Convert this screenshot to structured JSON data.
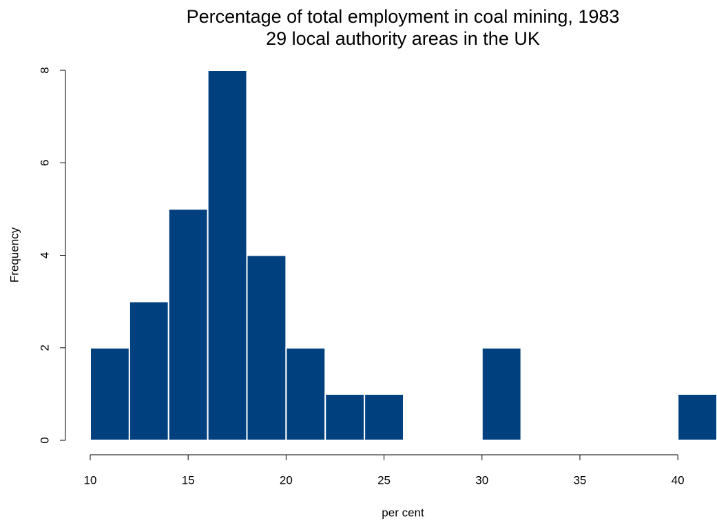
{
  "chart_data": {
    "type": "histogram",
    "title": "Percentage of total employment in coal mining, 1983",
    "subtitle": "29 local authority areas in the UK",
    "x_label": "per cent",
    "y_label": "Frequency",
    "bins": [
      10,
      12,
      14,
      16,
      18,
      20,
      22,
      24,
      26,
      28,
      30,
      32,
      34,
      36,
      38,
      40,
      42
    ],
    "values": [
      2,
      3,
      5,
      8,
      4,
      2,
      1,
      1,
      0,
      0,
      2,
      0,
      0,
      0,
      0,
      1
    ],
    "color": "#00407f",
    "xlim": [
      10,
      42
    ],
    "xticks": [
      10,
      15,
      20,
      25,
      30,
      35,
      40
    ],
    "ylim": [
      0,
      8
    ],
    "yticks": [
      0,
      2,
      4,
      6,
      8
    ]
  }
}
